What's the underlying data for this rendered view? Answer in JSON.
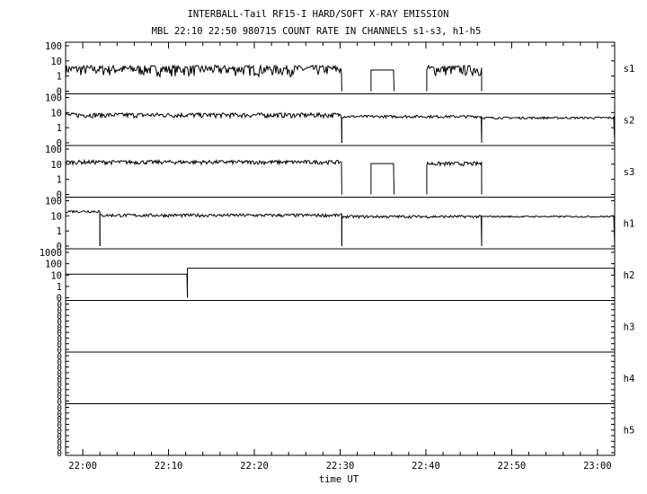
{
  "chart_data": {
    "type": "line",
    "title": "INTERBALL-Tail RF15-I HARD/SOFT X-RAY EMISSION",
    "subtitle": "MBL 22:10 22:50 980715  COUNT RATE IN CHANNELS s1-s3, h1-h5",
    "xlabel": "time UT",
    "x_ticks": [
      "22:00",
      "22:10",
      "22:20",
      "22:30",
      "22:40",
      "22:50",
      "23:00"
    ],
    "x_range_min": [
      -2,
      62
    ],
    "y_scale": "log",
    "grid": false,
    "panels": [
      {
        "name": "s1",
        "tick_labels": [
          "100",
          "10",
          "1",
          "0"
        ],
        "segments": [
          {
            "x": [
              -2,
              30.2
            ],
            "level": 3,
            "noise": 0.35
          },
          {
            "x": [
              33.6,
              36.3
            ],
            "level": 2.5,
            "noise": 0
          },
          {
            "x": [
              40.1,
              46.5
            ],
            "level": 3,
            "noise": 0.35
          }
        ]
      },
      {
        "name": "s2",
        "tick_labels": [
          "100",
          "10",
          "1",
          "0"
        ],
        "segments": [
          {
            "x": [
              -2,
              30.2
            ],
            "level": 7,
            "noise": 0.18
          },
          {
            "x": [
              30.2,
              46.5
            ],
            "level": 5.5,
            "noise": 0.1
          },
          {
            "x": [
              46.5,
              62
            ],
            "level": 4.5,
            "noise": 0.08
          }
        ]
      },
      {
        "name": "s3",
        "tick_labels": [
          "100",
          "10",
          "1",
          "0"
        ],
        "segments": [
          {
            "x": [
              -2,
              30.2
            ],
            "level": 14,
            "noise": 0.15
          },
          {
            "x": [
              33.6,
              36.3
            ],
            "level": 11,
            "noise": 0
          },
          {
            "x": [
              40.1,
              46.5
            ],
            "level": 11,
            "noise": 0.15
          }
        ]
      },
      {
        "name": "h1",
        "tick_labels": [
          "100",
          "10",
          "1",
          "0"
        ],
        "segments": [
          {
            "x": [
              -2,
              2
            ],
            "level": 20,
            "noise": 0.1
          },
          {
            "x": [
              2,
              30.2
            ],
            "level": 11,
            "noise": 0.12
          },
          {
            "x": [
              30.2,
              46.5
            ],
            "level": 9,
            "noise": 0.1
          },
          {
            "x": [
              46.5,
              62
            ],
            "level": 9,
            "noise": 0.06
          }
        ]
      },
      {
        "name": "h2",
        "tick_labels": [
          "1000",
          "100",
          "10",
          "1",
          "0"
        ],
        "segments": [
          {
            "x": [
              -2,
              12.2
            ],
            "level": 12,
            "noise": 0
          },
          {
            "x": [
              12.2,
              62
            ],
            "level": 40,
            "noise": 0
          }
        ]
      },
      {
        "name": "h3",
        "tick_labels": [
          "0",
          "0",
          "0",
          "0",
          "0",
          "0",
          "0",
          "0",
          "0"
        ],
        "segments": []
      },
      {
        "name": "h4",
        "tick_labels": [
          "0",
          "0",
          "0",
          "0",
          "0",
          "0",
          "0",
          "0",
          "0"
        ],
        "segments": []
      },
      {
        "name": "h5",
        "tick_labels": [
          "0",
          "0",
          "0",
          "0",
          "0",
          "0",
          "0",
          "0",
          "0"
        ],
        "segments": []
      }
    ]
  }
}
